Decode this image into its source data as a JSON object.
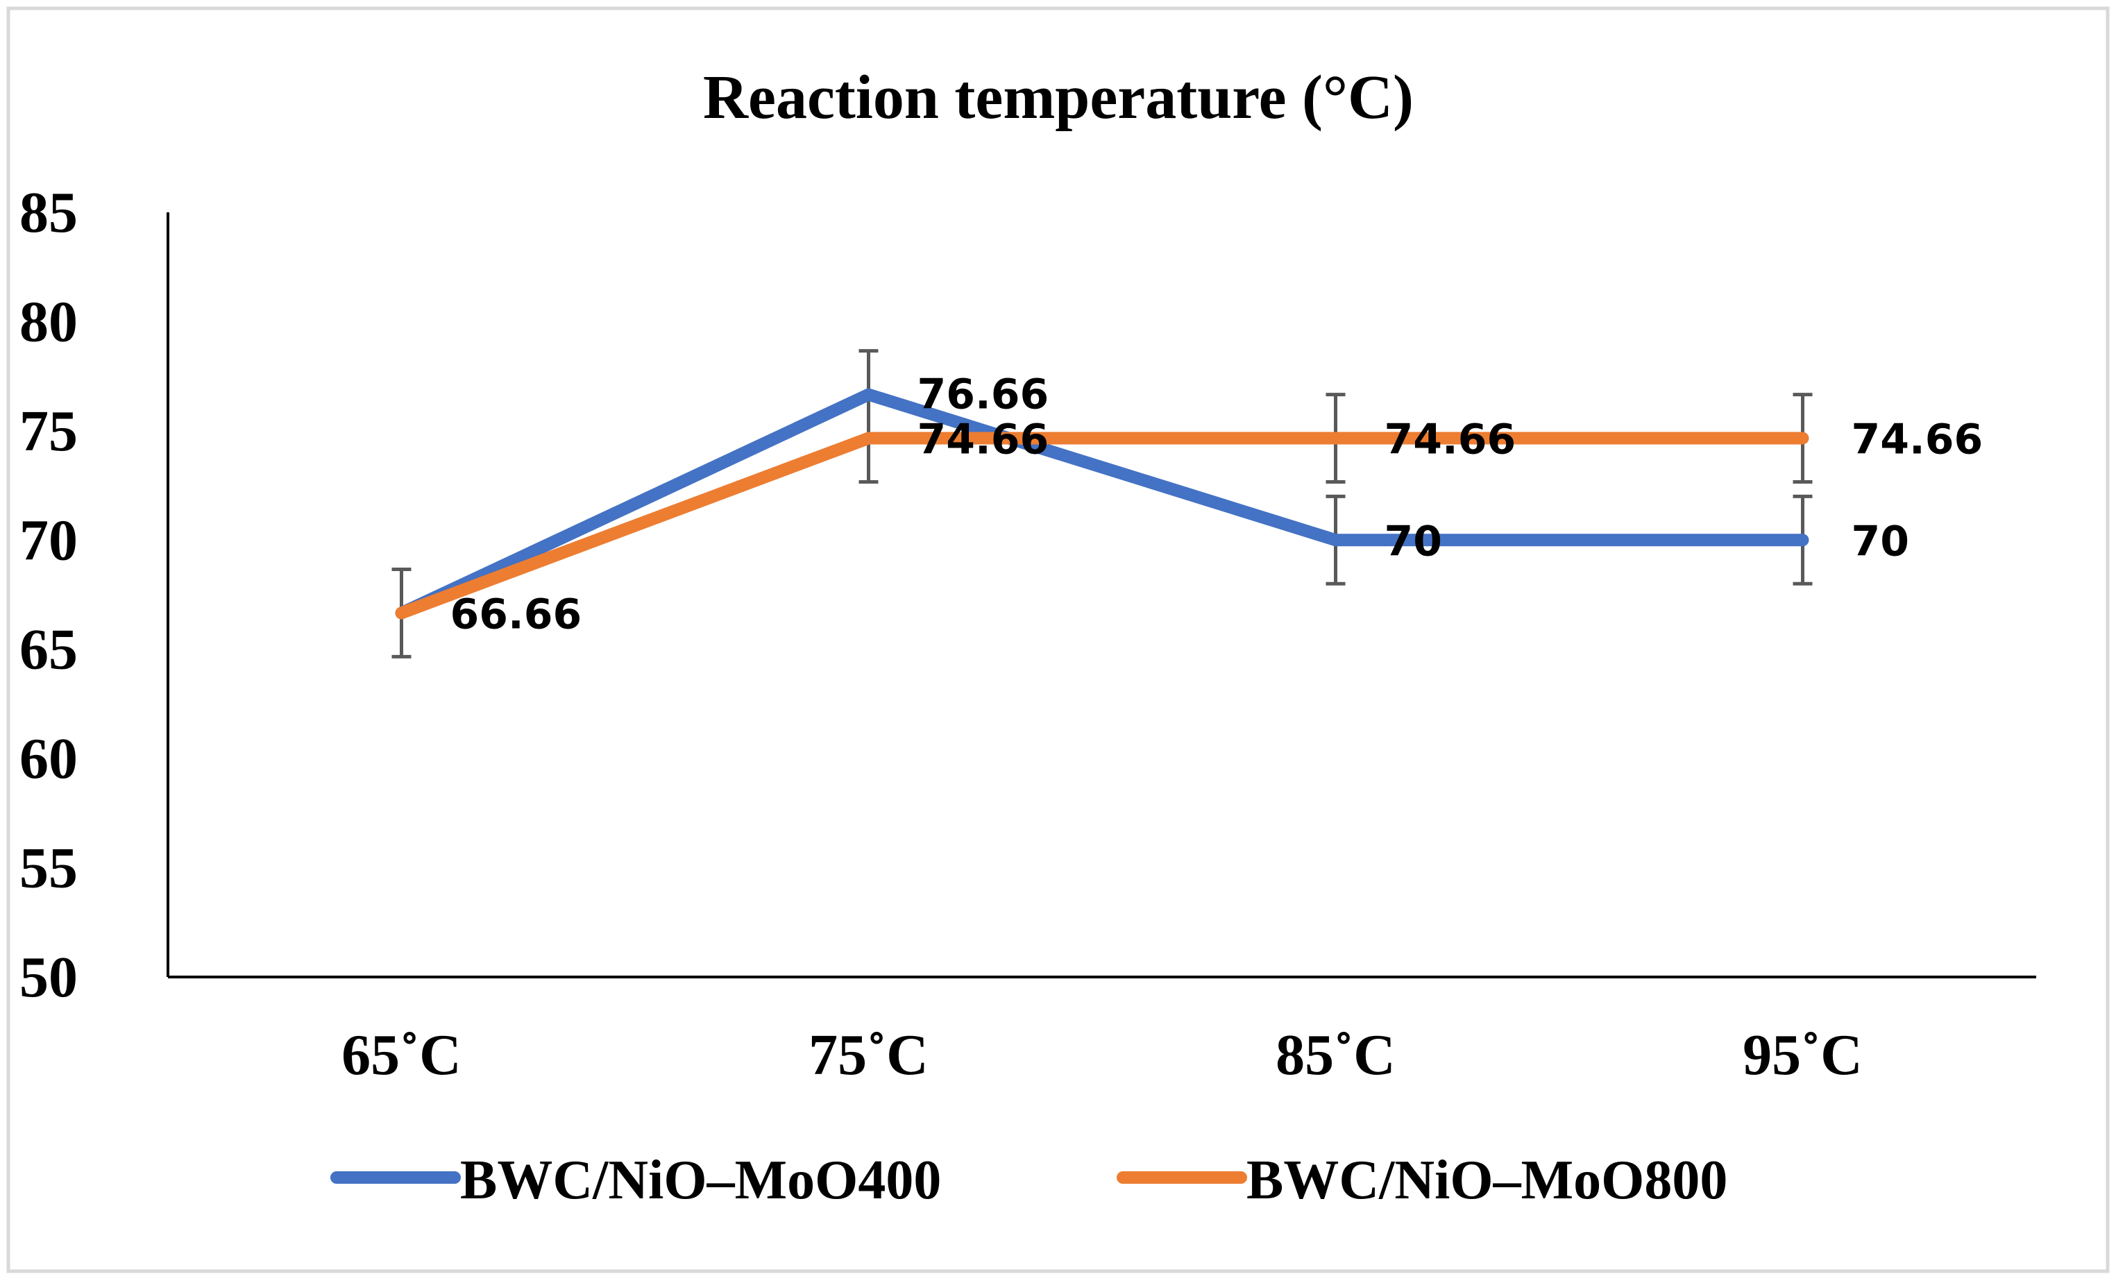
{
  "chart_data": {
    "type": "line",
    "title": "Reaction temperature (°C)",
    "xlabel": "",
    "ylabel": "",
    "categories": [
      "65˚C",
      "75˚C",
      "85˚C",
      "95˚C"
    ],
    "ylim": [
      50,
      85
    ],
    "yticks": [
      50,
      55,
      60,
      65,
      70,
      75,
      80,
      85
    ],
    "ytick_labels": [
      "50",
      "55",
      "60",
      "65",
      "70",
      "75",
      "80",
      "85"
    ],
    "grid": false,
    "legend_position": "bottom",
    "error_bar": 2,
    "series": [
      {
        "name": "BWC/NiO–MoO400",
        "color": "#4472c4",
        "values": [
          66.66,
          76.66,
          70,
          70
        ],
        "data_labels": [
          "66.66",
          "76.66",
          "70",
          "70"
        ]
      },
      {
        "name": "BWC/NiO–MoO800",
        "color": "#ed7d31",
        "values": [
          66.66,
          74.66,
          74.66,
          74.66
        ],
        "data_labels": [
          "",
          "74.66",
          "74.66",
          "74.66"
        ]
      }
    ],
    "error_bar_color": "#595959"
  }
}
